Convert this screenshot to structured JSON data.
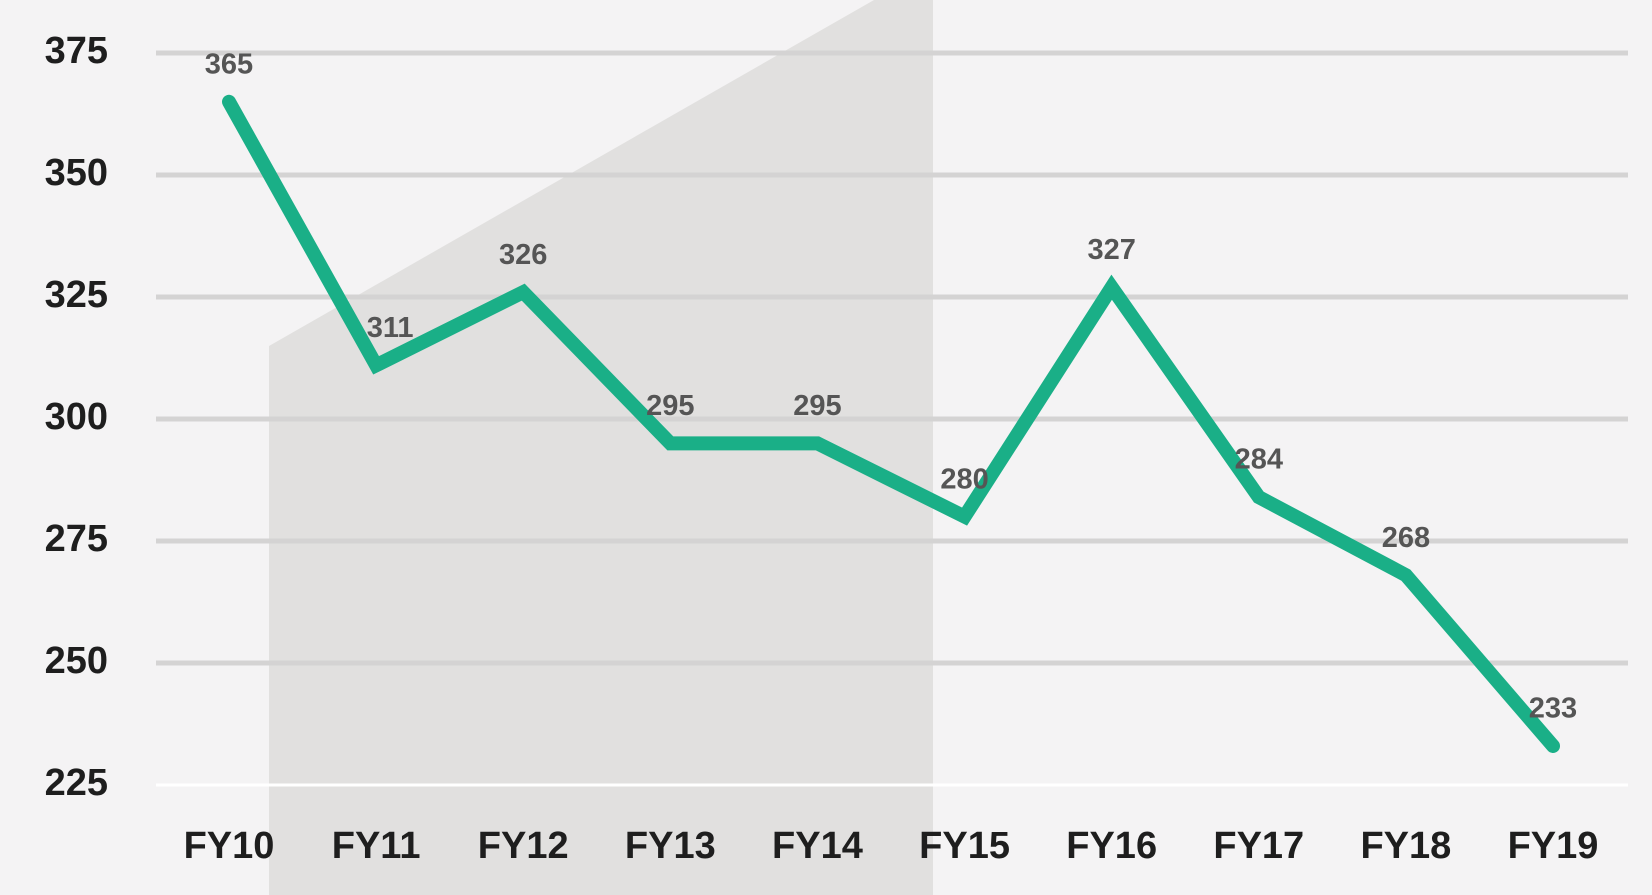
{
  "chart_data": {
    "type": "line",
    "categories": [
      "FY10",
      "FY11",
      "FY12",
      "FY13",
      "FY14",
      "FY15",
      "FY16",
      "FY17",
      "FY18",
      "FY19"
    ],
    "values": [
      365,
      311,
      326,
      295,
      295,
      280,
      327,
      284,
      268,
      233
    ],
    "color": "#1aaf87",
    "ylim": [
      225,
      375
    ],
    "yticks": [
      225,
      250,
      275,
      300,
      325,
      350,
      375
    ],
    "grid": true
  }
}
